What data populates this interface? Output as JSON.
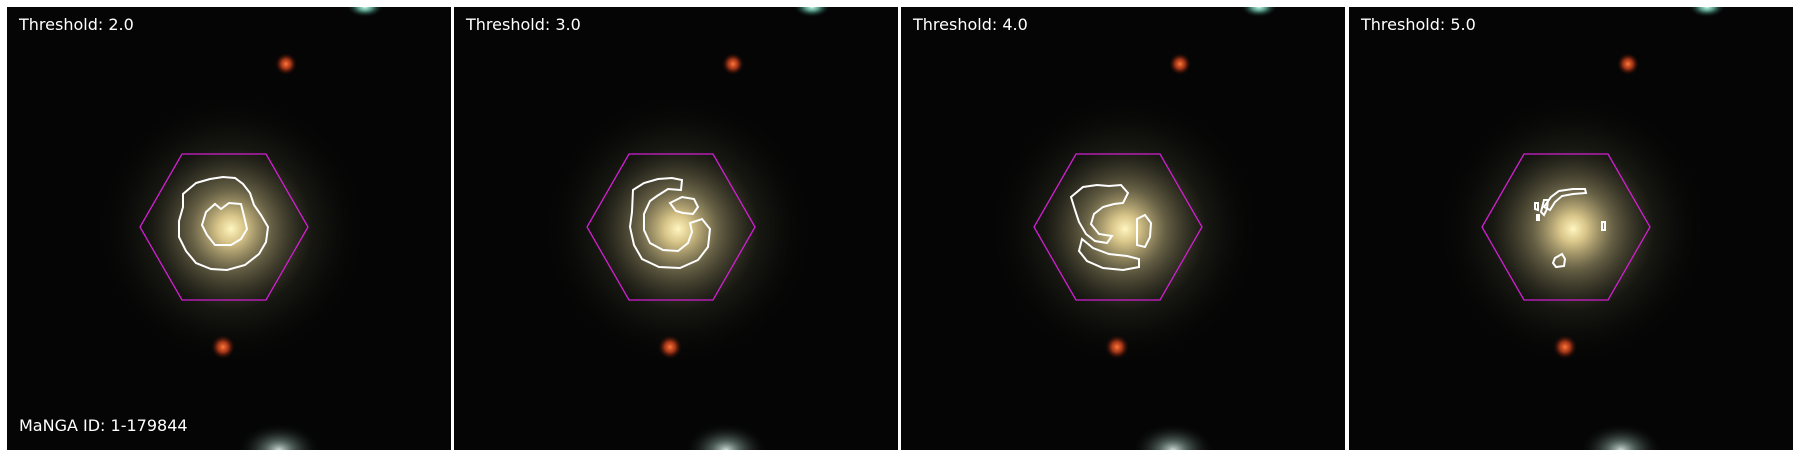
{
  "panels": [
    {
      "label": "Threshold: 2.0"
    },
    {
      "label": "Threshold: 3.0"
    },
    {
      "label": "Threshold: 4.0"
    },
    {
      "label": "Threshold: 5.0"
    }
  ],
  "object_id": "MaNGA ID: 1-179844",
  "colors": {
    "background": "#050505",
    "hexagon": "#d21fd2",
    "contour": "#ffffff",
    "galaxy_core": "#fff2b0",
    "star_red": "#ff5a28",
    "star_cyan": "#9af5df"
  }
}
